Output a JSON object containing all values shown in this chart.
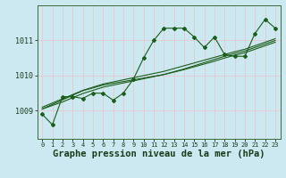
{
  "title": "Graphe pression niveau de la mer (hPa)",
  "background_color": "#cce8f0",
  "grid_color": "#e8c8d0",
  "line_color": "#1a5e1a",
  "x_ticks": [
    0,
    1,
    2,
    3,
    4,
    5,
    6,
    7,
    8,
    9,
    10,
    11,
    12,
    13,
    14,
    15,
    16,
    17,
    18,
    19,
    20,
    21,
    22,
    23
  ],
  "y_ticks": [
    1009,
    1010,
    1011
  ],
  "ylim": [
    1008.2,
    1012.0
  ],
  "xlim": [
    -0.5,
    23.5
  ],
  "main_line": [
    1008.9,
    1008.6,
    1009.4,
    1009.4,
    1009.35,
    1009.5,
    1009.5,
    1009.3,
    1009.5,
    1009.9,
    1010.5,
    1011.0,
    1011.35,
    1011.35,
    1011.35,
    1011.1,
    1010.8,
    1011.1,
    1010.6,
    1010.55,
    1010.55,
    1011.2,
    1011.6,
    1011.35
  ],
  "trend1": [
    1009.05,
    1009.18,
    1009.31,
    1009.44,
    1009.57,
    1009.65,
    1009.73,
    1009.78,
    1009.83,
    1009.88,
    1009.93,
    1009.98,
    1010.03,
    1010.1,
    1010.17,
    1010.25,
    1010.33,
    1010.41,
    1010.5,
    1010.58,
    1010.65,
    1010.75,
    1010.85,
    1010.95
  ],
  "trend2": [
    1009.05,
    1009.15,
    1009.25,
    1009.37,
    1009.49,
    1009.58,
    1009.67,
    1009.73,
    1009.79,
    1009.85,
    1009.91,
    1009.97,
    1010.03,
    1010.11,
    1010.19,
    1010.28,
    1010.37,
    1010.46,
    1010.55,
    1010.63,
    1010.7,
    1010.8,
    1010.9,
    1011.0
  ],
  "trend3": [
    1009.1,
    1009.22,
    1009.34,
    1009.46,
    1009.58,
    1009.67,
    1009.76,
    1009.82,
    1009.88,
    1009.94,
    1010.0,
    1010.06,
    1010.12,
    1010.2,
    1010.28,
    1010.36,
    1010.44,
    1010.52,
    1010.6,
    1010.68,
    1010.75,
    1010.85,
    1010.95,
    1011.05
  ],
  "title_fontsize": 7.5,
  "tick_fontsize": 5.0,
  "ytick_fontsize": 6.0
}
